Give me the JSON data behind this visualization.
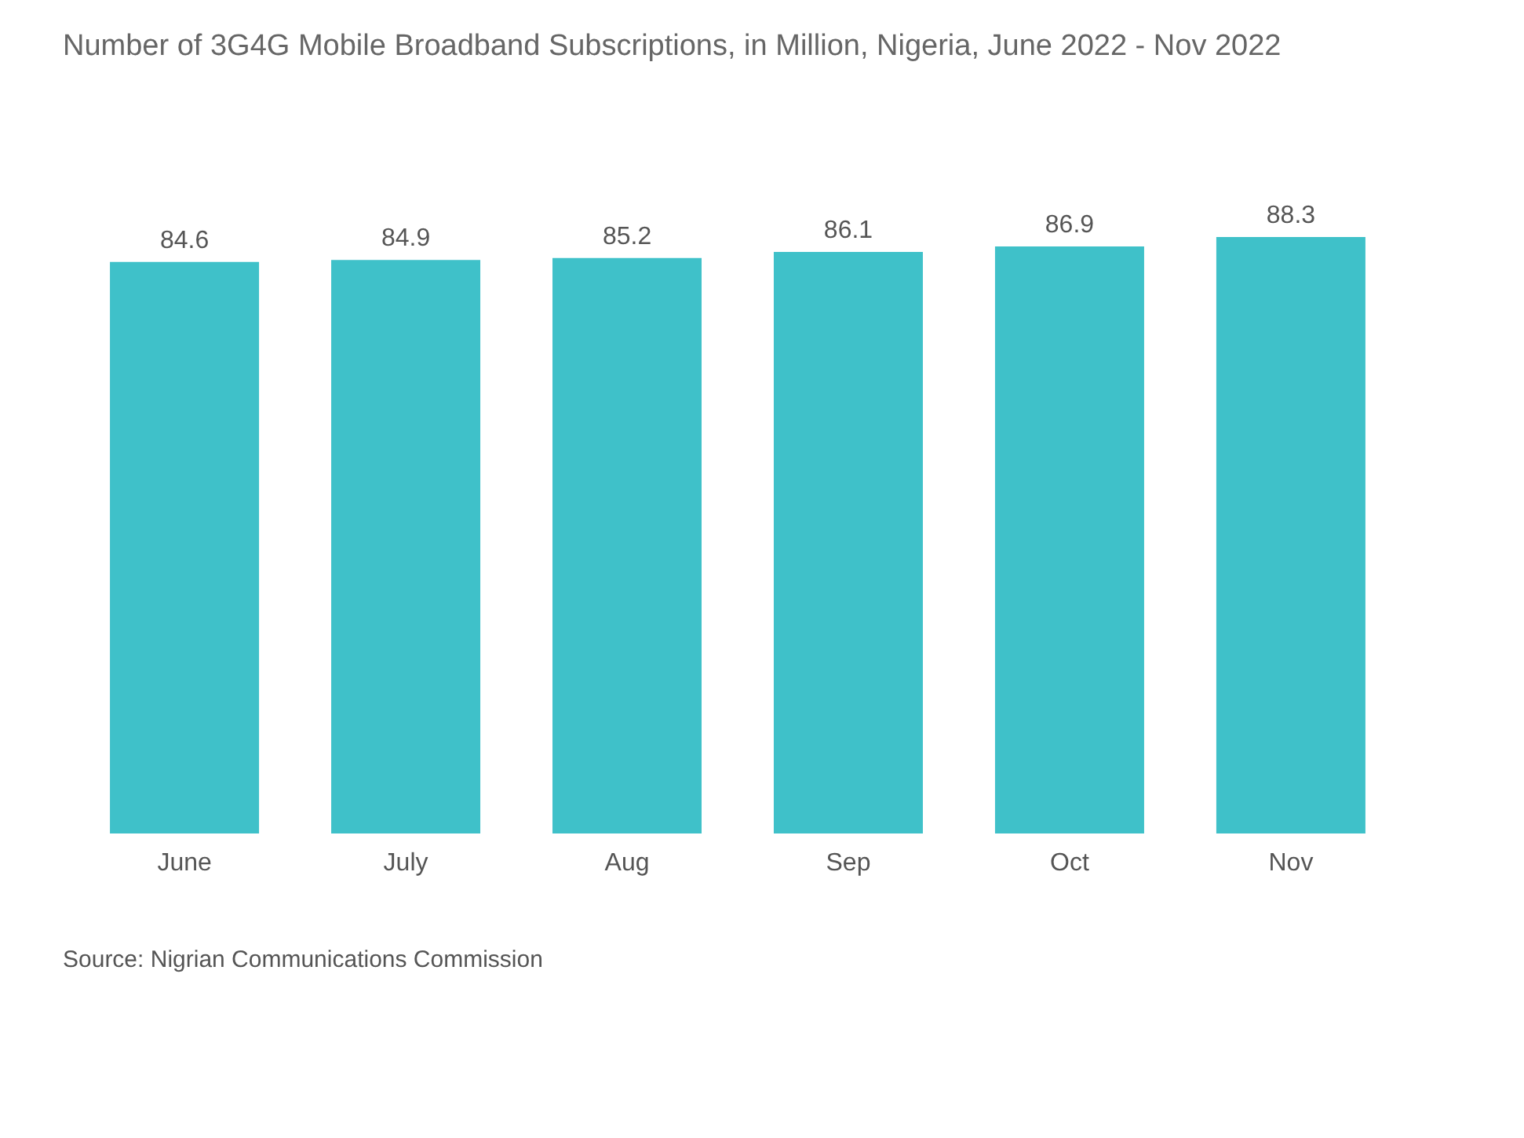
{
  "chart_data": {
    "type": "bar",
    "title": "Number of 3G4G Mobile Broadband Subscriptions, in Million, Nigeria, June 2022 - Nov 2022",
    "categories": [
      "June",
      "July",
      "Aug",
      "Sep",
      "Oct",
      "Nov"
    ],
    "values": [
      84.6,
      84.9,
      85.2,
      86.1,
      86.9,
      88.3
    ],
    "color": "#3fc1c9",
    "data_labels": true,
    "grid": false,
    "annotations": [
      "Source: Nigrian Communications Commission"
    ]
  }
}
